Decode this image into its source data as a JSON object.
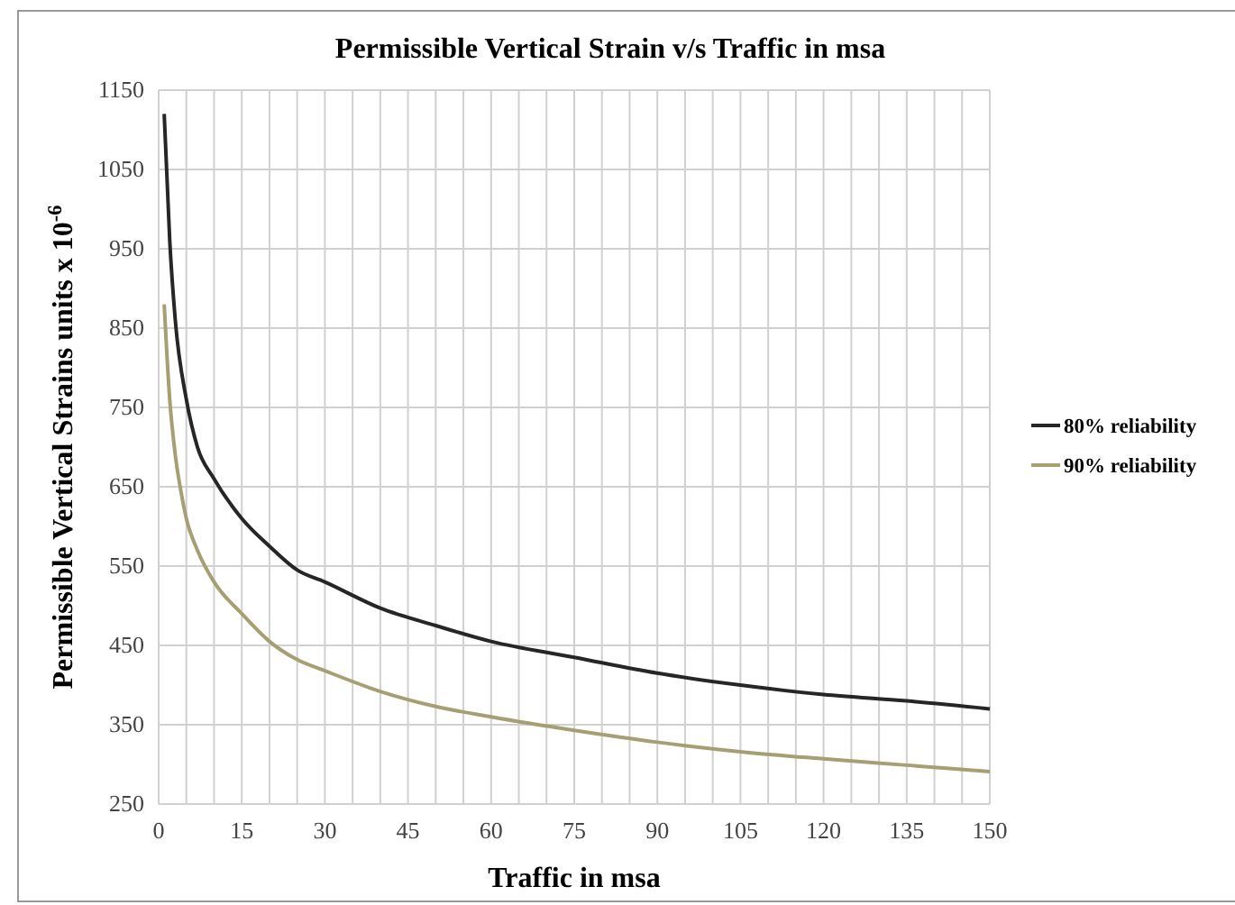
{
  "chart_data": {
    "type": "line",
    "title": "Permissible Vertical Strain v/s Traffic in msa",
    "xlabel": "Traffic in msa",
    "ylabel": "Permissible Vertical Strains units x 10$^{-6}$",
    "xlim": [
      0,
      150
    ],
    "xticks": [
      0,
      {
        "value": 5,
        "label": null
      },
      {
        "value": 10,
        "label": null
      },
      15,
      {
        "value": 20,
        "label": null
      },
      {
        "value": 25,
        "label": null
      },
      30,
      {
        "value": 35,
        "label": null
      },
      {
        "value": 40,
        "label": null
      },
      45,
      {
        "value": 50,
        "label": null
      },
      {
        "value": 55,
        "label": null
      },
      60,
      {
        "value": 65,
        "label": null
      },
      {
        "value": 70,
        "label": null
      },
      75,
      {
        "value": 80,
        "label": null
      },
      {
        "value": 85,
        "label": null
      },
      90,
      {
        "value": 95,
        "label": null
      },
      {
        "value": 100,
        "label": null
      },
      105,
      {
        "value": 110,
        "label": null
      },
      {
        "value": 115,
        "label": null
      },
      120,
      {
        "value": 125,
        "label": null
      },
      {
        "value": 130,
        "label": null
      },
      135,
      {
        "value": 140,
        "label": null
      },
      {
        "value": 145,
        "label": null
      },
      150
    ],
    "ylim": [
      250,
      1150
    ],
    "yticks": [
      250,
      350,
      450,
      550,
      650,
      750,
      850,
      950,
      1050,
      1150
    ],
    "grid": true,
    "legend": "right",
    "marker": "none",
    "line_style": "solid",
    "series": [
      {
        "name": "80% reliability",
        "color": "#262626",
        "x": [
          1,
          2,
          3,
          5,
          7,
          10,
          15,
          20,
          25,
          30,
          40,
          50,
          60,
          75,
          90,
          105,
          120,
          135,
          150
        ],
        "values": [
          1120,
          960,
          860,
          760,
          700,
          660,
          610,
          575,
          545,
          530,
          497,
          475,
          455,
          435,
          415,
          400,
          388,
          380,
          370
        ]
      },
      {
        "name": "90% reliability",
        "color": "#a69f73",
        "x": [
          1,
          2,
          3,
          4,
          5,
          7,
          10,
          15,
          20,
          25,
          30,
          40,
          50,
          60,
          75,
          90,
          105,
          120,
          135,
          150
        ],
        "values": [
          880,
          760,
          690,
          645,
          610,
          570,
          530,
          490,
          455,
          432,
          418,
          392,
          373,
          360,
          343,
          328,
          316,
          307,
          299,
          291
        ]
      }
    ]
  }
}
